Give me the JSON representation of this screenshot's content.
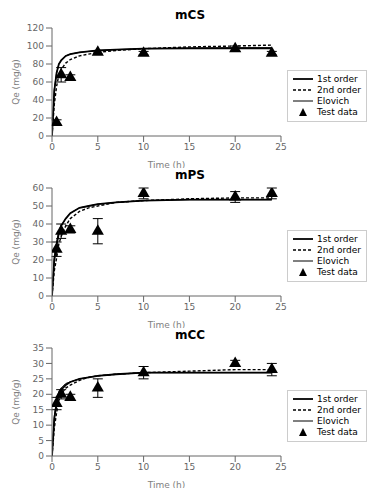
{
  "chart_data": [
    {
      "type": "line",
      "title": "mCS",
      "x_label": "Time (h)",
      "y_label": "Qe (mg/g)",
      "xlim": [
        0,
        25
      ],
      "xticks": [
        0,
        5,
        10,
        15,
        20,
        25
      ],
      "ylim": [
        0,
        120
      ],
      "yticks": [
        0,
        20,
        40,
        60,
        80,
        100,
        120
      ],
      "grid": false,
      "legend": "right",
      "series": [
        {
          "name": "1st order",
          "type": "line",
          "color": "black",
          "line_style": "solid",
          "x": [
            0,
            0.25,
            0.5,
            0.75,
            1,
            1.5,
            2,
            3,
            4,
            5,
            7,
            10,
            15,
            20,
            24
          ],
          "values": [
            0,
            50,
            70,
            80,
            84,
            89,
            91,
            93,
            94,
            95,
            96,
            97,
            97.5,
            97.5,
            97.5
          ]
        },
        {
          "name": "2nd order",
          "type": "line",
          "color": "black",
          "line_style": "dotted",
          "x": [
            0,
            0.25,
            0.5,
            0.75,
            1,
            1.5,
            2,
            3,
            4,
            5,
            7,
            10,
            15,
            20,
            24
          ],
          "values": [
            0,
            35,
            55,
            68,
            74,
            81,
            85,
            89,
            91,
            93,
            95,
            97,
            99,
            100,
            101
          ]
        },
        {
          "name": "Elovich",
          "type": "line",
          "color": "black",
          "line_style": "solid",
          "x": [
            0,
            0.25,
            0.5,
            0.75,
            1,
            1.5,
            2,
            3,
            4,
            5,
            7,
            10,
            15,
            20,
            24
          ],
          "values": [
            0,
            52,
            70,
            80,
            84,
            89,
            91,
            93,
            94,
            95,
            96,
            97,
            97.5,
            98,
            98
          ]
        },
        {
          "name": "Test data",
          "type": "scatter",
          "color": "black",
          "marker": "triangle",
          "x": [
            0.5,
            1,
            2,
            5,
            10,
            20,
            24
          ],
          "values": [
            15,
            68,
            65,
            93,
            92,
            97,
            92
          ],
          "yerr": [
            3,
            8,
            3,
            2,
            2,
            3,
            2
          ]
        }
      ]
    },
    {
      "type": "line",
      "title": "mPS",
      "x_label": "Time (h)",
      "y_label": "Qe (mg/g)",
      "xlim": [
        0,
        25
      ],
      "xticks": [
        0,
        5,
        10,
        15,
        20,
        25
      ],
      "ylim": [
        0,
        60
      ],
      "yticks": [
        0,
        10,
        20,
        30,
        40,
        50,
        60
      ],
      "grid": false,
      "legend": "right",
      "series": [
        {
          "name": "1st order",
          "type": "line",
          "color": "black",
          "line_style": "solid",
          "x": [
            0,
            0.25,
            0.5,
            0.75,
            1,
            1.5,
            2,
            3,
            4,
            5,
            7,
            10,
            15,
            20,
            24
          ],
          "values": [
            0,
            20,
            28,
            35,
            39,
            43,
            46,
            49,
            50,
            51,
            52,
            53,
            53.5,
            53.5,
            53.5
          ]
        },
        {
          "name": "2nd order",
          "type": "line",
          "color": "black",
          "line_style": "dotted",
          "x": [
            0,
            0.25,
            0.5,
            0.75,
            1,
            1.5,
            2,
            3,
            4,
            5,
            7,
            10,
            15,
            20,
            24
          ],
          "values": [
            0,
            14,
            21,
            29,
            33,
            39,
            43,
            47,
            49,
            50,
            52,
            53,
            54,
            54.5,
            54.5
          ]
        },
        {
          "name": "Elovich",
          "type": "line",
          "color": "black",
          "line_style": "solid",
          "x": [
            0,
            0.25,
            0.5,
            0.75,
            1,
            1.5,
            2,
            3,
            4,
            5,
            7,
            10,
            15,
            20,
            24
          ],
          "values": [
            0,
            22,
            30,
            36,
            39,
            43,
            46,
            49,
            50,
            51,
            52,
            53,
            53.5,
            53.5,
            53.5
          ]
        },
        {
          "name": "Test data",
          "type": "scatter",
          "color": "black",
          "marker": "triangle",
          "x": [
            0.5,
            1,
            2,
            5,
            10,
            20,
            24
          ],
          "values": [
            26,
            36,
            37,
            36,
            57,
            55,
            57
          ],
          "yerr": [
            4,
            4,
            2,
            7,
            3,
            3,
            3
          ]
        }
      ]
    },
    {
      "type": "line",
      "title": "mCC",
      "x_label": "Time (h)",
      "y_label": "Qe (mg/g)",
      "xlim": [
        0,
        25
      ],
      "xticks": [
        0,
        5,
        10,
        15,
        20,
        25
      ],
      "ylim": [
        0,
        35
      ],
      "yticks": [
        0,
        5,
        10,
        15,
        20,
        25,
        30,
        35
      ],
      "grid": false,
      "legend": "right",
      "series": [
        {
          "name": "1st order",
          "type": "line",
          "color": "black",
          "line_style": "solid",
          "x": [
            0,
            0.25,
            0.5,
            0.75,
            1,
            1.5,
            2,
            3,
            4,
            5,
            7,
            10,
            15,
            20,
            24
          ],
          "values": [
            0,
            12,
            17,
            20,
            21.5,
            23,
            24,
            25,
            25.5,
            26,
            26.5,
            27,
            27,
            27,
            27
          ]
        },
        {
          "name": "2nd order",
          "type": "line",
          "color": "black",
          "line_style": "dotted",
          "x": [
            0,
            0.25,
            0.5,
            0.75,
            1,
            1.5,
            2,
            3,
            4,
            5,
            7,
            10,
            15,
            20,
            24
          ],
          "values": [
            0,
            9,
            14,
            18,
            20,
            22,
            23,
            24.5,
            25.5,
            26,
            26.5,
            27,
            27.5,
            28,
            28
          ]
        },
        {
          "name": "Elovich",
          "type": "line",
          "color": "black",
          "line_style": "solid",
          "x": [
            0,
            0.25,
            0.5,
            0.75,
            1,
            1.5,
            2,
            3,
            4,
            5,
            7,
            10,
            15,
            20,
            24
          ],
          "values": [
            0,
            13,
            18,
            21,
            22,
            23.5,
            24,
            25,
            25.5,
            26,
            26.5,
            27,
            27,
            27,
            27
          ]
        },
        {
          "name": "Test data",
          "type": "scatter",
          "color": "black",
          "marker": "triangle",
          "x": [
            0.5,
            1,
            2,
            5,
            10,
            20,
            24
          ],
          "values": [
            17,
            20,
            19,
            22,
            27,
            30,
            28
          ],
          "yerr": [
            2,
            1.5,
            1,
            3,
            2,
            1,
            2
          ]
        }
      ]
    }
  ]
}
